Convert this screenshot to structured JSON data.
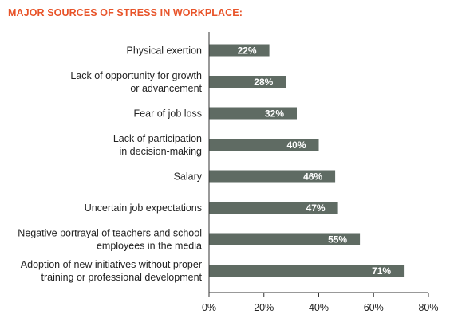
{
  "colors": {
    "title": "#e8542a",
    "bar": "#5f6b63",
    "axis": "#333333",
    "text": "#222222",
    "value_text": "#ffffff"
  },
  "chart_data": {
    "type": "bar",
    "orientation": "horizontal",
    "title": "MAJOR SOURCES OF STRESS IN WORKPLACE:",
    "xlabel": "",
    "ylabel": "",
    "xlim": [
      0,
      80
    ],
    "ticks": [
      0,
      20,
      40,
      60,
      80
    ],
    "tick_labels": [
      "0%",
      "20%",
      "40%",
      "60%",
      "80%"
    ],
    "grid": false,
    "categories": [
      [
        "Physical exertion"
      ],
      [
        "Lack of opportunity for growth",
        "or advancement"
      ],
      [
        "Fear of job loss"
      ],
      [
        "Lack of participation",
        "in decision-making"
      ],
      [
        "Salary"
      ],
      [
        "Uncertain job expectations"
      ],
      [
        "Negative portrayal of teachers and school",
        "employees in the media"
      ],
      [
        "Adoption of new initiatives without proper",
        "training or professional development"
      ]
    ],
    "values": [
      22,
      28,
      32,
      40,
      46,
      47,
      55,
      71
    ],
    "value_labels": [
      "22%",
      "28%",
      "32%",
      "40%",
      "46%",
      "47%",
      "55%",
      "71%"
    ]
  }
}
